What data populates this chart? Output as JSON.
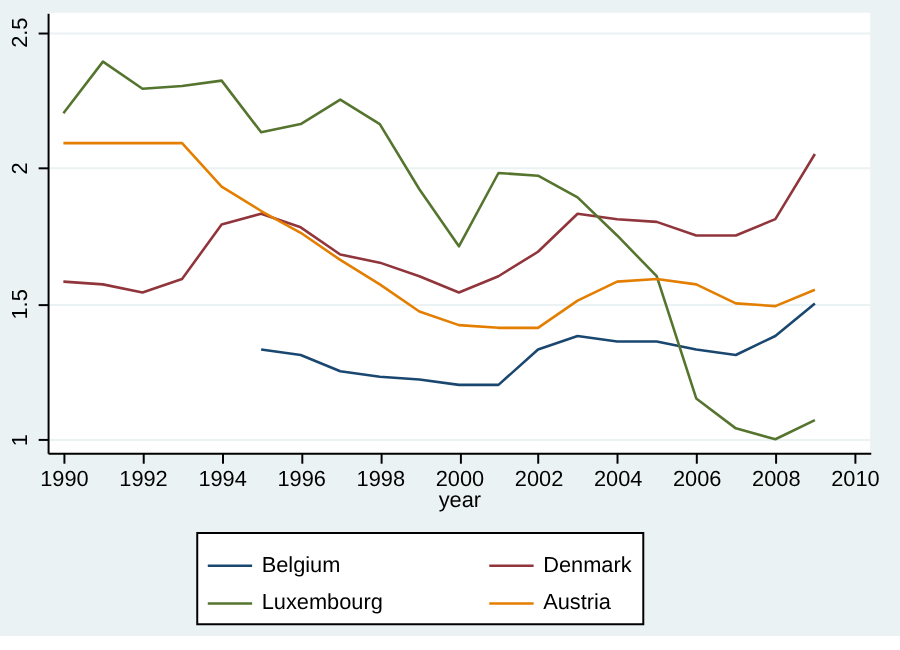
{
  "chart_data": {
    "type": "line",
    "xlabel": "year",
    "x": [
      1990,
      1991,
      1992,
      1993,
      1994,
      1995,
      1996,
      1997,
      1998,
      1999,
      2000,
      2001,
      2002,
      2003,
      2004,
      2005,
      2006,
      2007,
      2008,
      2009
    ],
    "series": [
      {
        "name": "Belgium",
        "color": "#1a476f",
        "values": [
          null,
          null,
          null,
          null,
          null,
          1.33,
          1.31,
          1.25,
          1.23,
          1.22,
          1.2,
          1.2,
          1.33,
          1.38,
          1.36,
          1.36,
          1.33,
          1.31,
          1.38,
          1.5
        ]
      },
      {
        "name": "Denmark",
        "color": "#90353b",
        "values": [
          1.58,
          1.57,
          1.54,
          1.59,
          1.79,
          1.83,
          1.78,
          1.68,
          1.65,
          1.6,
          1.54,
          1.6,
          1.69,
          1.83,
          1.81,
          1.8,
          1.75,
          1.75,
          1.81,
          2.05
        ]
      },
      {
        "name": "Luxembourg",
        "color": "#55752f",
        "values": [
          2.2,
          2.39,
          2.29,
          2.3,
          2.32,
          2.13,
          2.16,
          2.25,
          2.16,
          1.92,
          1.71,
          1.98,
          1.97,
          1.89,
          1.75,
          1.6,
          1.15,
          1.04,
          1.0,
          1.07
        ]
      },
      {
        "name": "Austria",
        "color": "#e37e00",
        "values": [
          2.09,
          2.09,
          2.09,
          2.09,
          1.93,
          1.84,
          1.76,
          1.66,
          1.57,
          1.47,
          1.42,
          1.41,
          1.41,
          1.51,
          1.58,
          1.59,
          1.57,
          1.5,
          1.49,
          1.55
        ]
      }
    ],
    "xlim": [
      1989.6,
      2010.4
    ],
    "xticks": [
      1990,
      1992,
      1994,
      1996,
      1998,
      2000,
      2002,
      2004,
      2006,
      2008,
      2010
    ],
    "ylim": [
      0.95,
      2.57
    ],
    "yticks": [
      1,
      1.5,
      2,
      2.5
    ],
    "grid": "y",
    "legend": "bottom",
    "line_style": "solid",
    "marker": "none"
  }
}
